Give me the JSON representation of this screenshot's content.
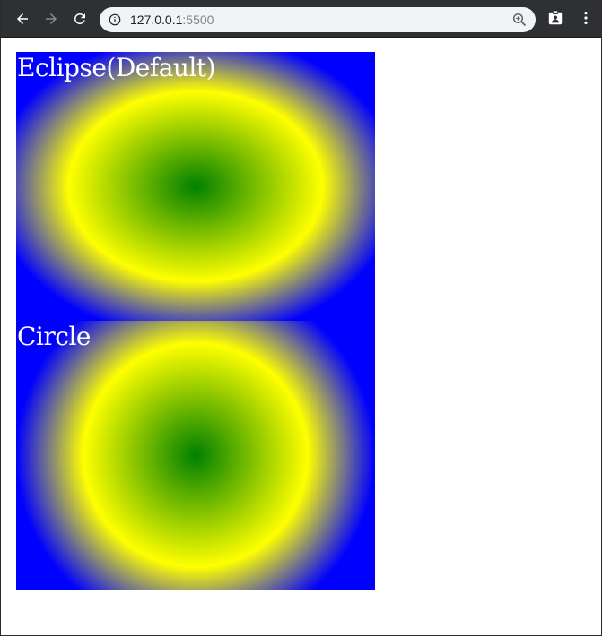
{
  "browser": {
    "address_bar": {
      "host": "127.0.0.1",
      "port": ":5500"
    },
    "icons": {
      "back": "back-arrow-icon",
      "forward": "forward-arrow-icon",
      "reload": "reload-icon",
      "site_info": "info-icon",
      "zoom": "zoom-icon",
      "profile": "profile-icon",
      "menu": "menu-icon"
    },
    "colors": {
      "toolbar": "#2f3033",
      "omnibox": "#f1f3f4"
    }
  },
  "page": {
    "boxes": [
      {
        "label": "Eclipse(Default)",
        "gradient_shape": "ellipse",
        "colors": [
          "#008000",
          "#ffff00",
          "#0000ff"
        ]
      },
      {
        "label": "Circle",
        "gradient_shape": "circle",
        "colors": [
          "#008000",
          "#ffff00",
          "#0000ff"
        ]
      }
    ]
  }
}
